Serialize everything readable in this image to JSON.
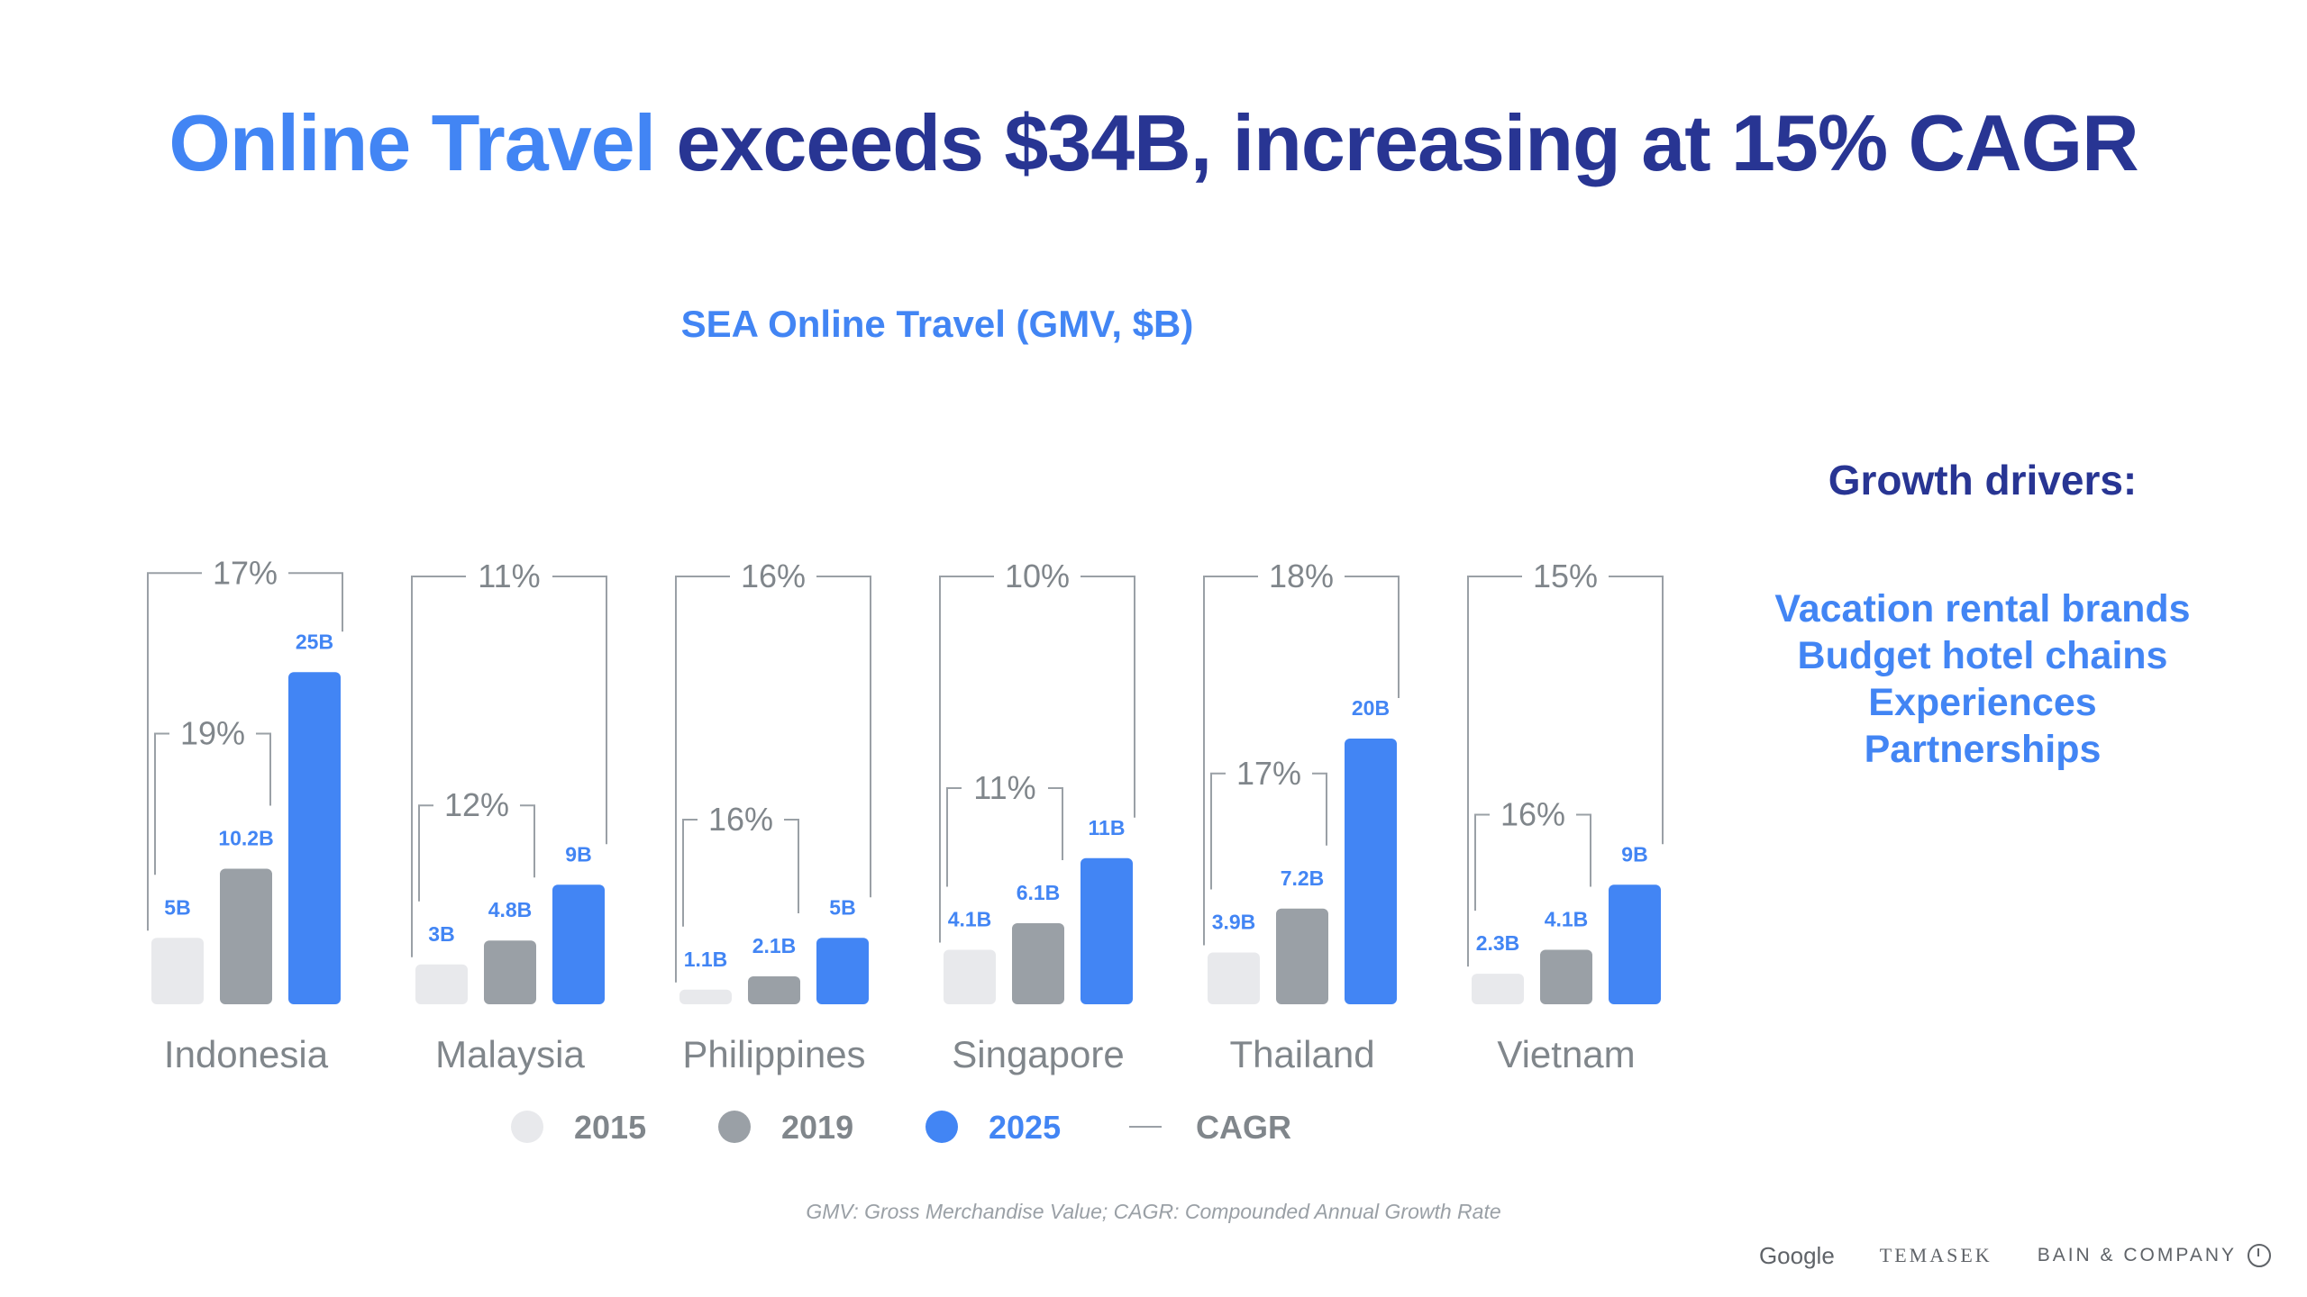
{
  "title": {
    "highlight": "Online Travel",
    "rest": "exceeds $34B, increasing at 15% CAGR"
  },
  "footnote": "GMV: Gross Merchandise Value; CAGR: Compounded Annual Growth Rate",
  "drivers": {
    "heading": "Growth drivers:",
    "items": [
      "Vacation rental brands",
      "Budget hotel chains",
      "Experiences",
      "Partnerships"
    ]
  },
  "logos": {
    "google": "Google",
    "temasek": "TEMASEK",
    "bain": "BAIN & COMPANY"
  },
  "colors": {
    "y2015": "#e8e9ec",
    "y2019": "#9aa0a6",
    "y2025": "#4285f4",
    "bracket": "#9aa0a6",
    "dark": "#283593"
  },
  "chart_data": {
    "type": "bar",
    "title": "SEA Online Travel (GMV, $B)",
    "categories": [
      "Indonesia",
      "Malaysia",
      "Philippines",
      "Singapore",
      "Thailand",
      "Vietnam"
    ],
    "series": [
      {
        "name": "2015",
        "values": [
          5,
          3,
          1.1,
          4.1,
          3.9,
          2.3
        ],
        "labels": [
          "5B",
          "3B",
          "1.1B",
          "4.1B",
          "3.9B",
          "2.3B"
        ]
      },
      {
        "name": "2019",
        "values": [
          10.2,
          4.8,
          2.1,
          6.1,
          7.2,
          4.1
        ],
        "labels": [
          "10.2B",
          "4.8B",
          "2.1B",
          "6.1B",
          "7.2B",
          "4.1B"
        ]
      },
      {
        "name": "2025",
        "values": [
          25,
          9,
          5,
          11,
          20,
          9
        ],
        "labels": [
          "25B",
          "9B",
          "5B",
          "11B",
          "20B",
          "9B"
        ]
      }
    ],
    "cagr_2015_2025": [
      "17%",
      "11%",
      "16%",
      "10%",
      "18%",
      "15%"
    ],
    "cagr_2015_2019": [
      "19%",
      "12%",
      "16%",
      "11%",
      "17%",
      "16%"
    ],
    "legend": [
      "2015",
      "2019",
      "2025",
      "CAGR"
    ],
    "ylim": [
      0,
      25
    ]
  }
}
